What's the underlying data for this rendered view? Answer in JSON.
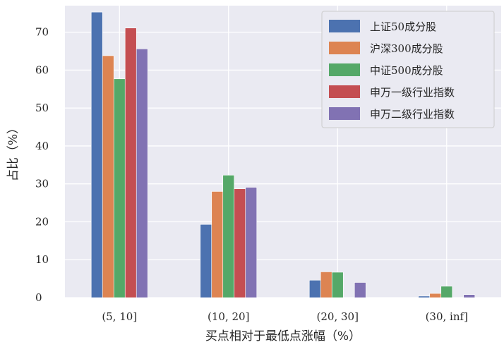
{
  "chart_data": {
    "type": "bar",
    "categories": [
      "(5, 10]",
      "(10, 20]",
      "(20, 30]",
      "(30, inf]"
    ],
    "series": [
      {
        "name": "上证50成分股",
        "color": "#4c72b0",
        "values": [
          75.3,
          19.3,
          4.6,
          0.4
        ]
      },
      {
        "name": "沪深300成分股",
        "color": "#dd8452",
        "values": [
          63.8,
          28.0,
          6.8,
          1.1
        ]
      },
      {
        "name": "中证500成分股",
        "color": "#55a868",
        "values": [
          57.7,
          32.3,
          6.7,
          3.0
        ]
      },
      {
        "name": "申万一级行业指数",
        "color": "#c44e52",
        "values": [
          71.1,
          28.7,
          0.0,
          0.0
        ]
      },
      {
        "name": "申万二级行业指数",
        "color": "#8172b3",
        "values": [
          65.6,
          29.1,
          4.0,
          0.8
        ]
      }
    ],
    "yticks": [
      0,
      10,
      20,
      30,
      40,
      50,
      60,
      70
    ],
    "ylim": [
      0,
      77
    ],
    "xlabel": "买点相对于最低点涨幅（%）",
    "ylabel": "占比（%）",
    "grid": true,
    "legend_position": "upper right",
    "background": "#eaeaf2"
  }
}
